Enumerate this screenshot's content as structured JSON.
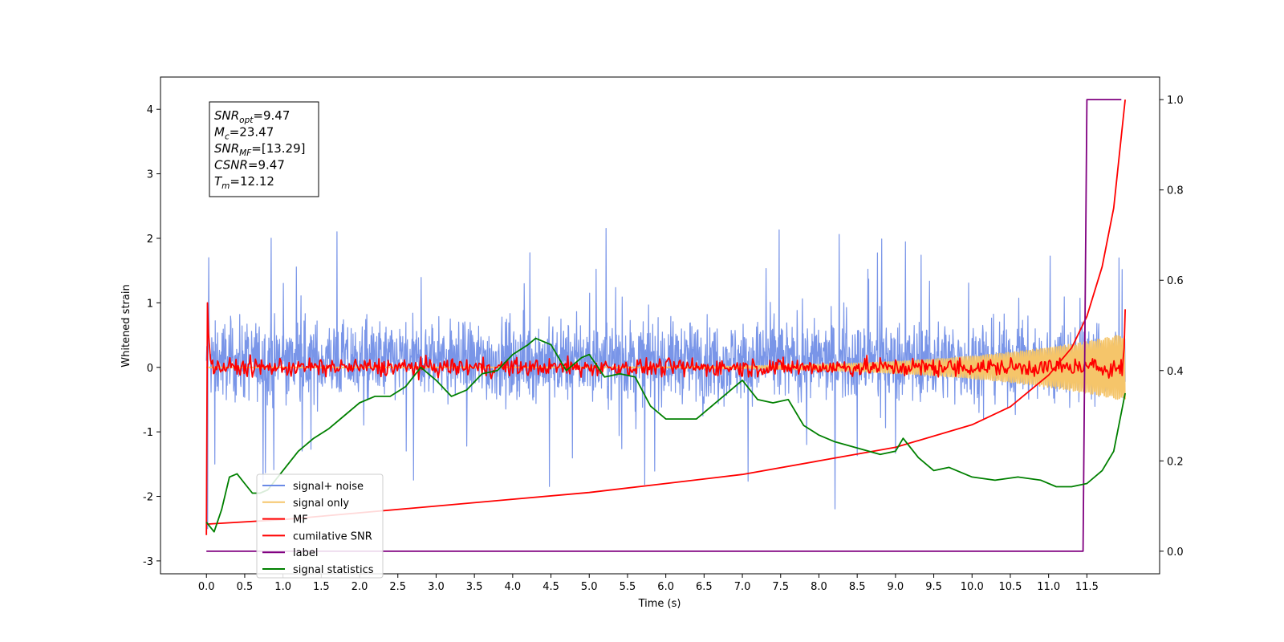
{
  "chart_data": {
    "type": "line",
    "title": "",
    "xlabel": "Time (s)",
    "ylabel": "Whitened strain",
    "xlim": [
      -0.6,
      12.45
    ],
    "ylim": [
      -3.2,
      4.5
    ],
    "y2lim": [
      -0.05,
      1.05
    ],
    "x_ticks": [
      0.0,
      0.5,
      1.0,
      1.5,
      2.0,
      2.5,
      3.0,
      3.5,
      4.0,
      4.5,
      5.0,
      5.5,
      6.0,
      6.5,
      7.0,
      7.5,
      8.0,
      8.5,
      9.0,
      9.5,
      10.0,
      10.5,
      11.0,
      11.5
    ],
    "x_tick_labels": [
      "0.0",
      "0.5",
      "1.0",
      "1.5",
      "2.0",
      "2.5",
      "3.0",
      "3.5",
      "4.0",
      "4.5",
      "5.0",
      "5.5",
      "6.0",
      "6.5",
      "7.0",
      "7.5",
      "8.0",
      "8.5",
      "9.0",
      "9.5",
      "10.0",
      "10.5",
      "11.0",
      "11.5"
    ],
    "y_ticks": [
      -3,
      -2,
      -1,
      0,
      1,
      2,
      3,
      4
    ],
    "y2_ticks": [
      0.0,
      0.2,
      0.4,
      0.6,
      0.8,
      1.0
    ],
    "y2_tick_labels": [
      "0.0",
      "0.2",
      "0.4",
      "0.6",
      "0.8",
      "1.0"
    ],
    "info_box": [
      {
        "main": "SNR",
        "sub": "opt",
        "rest": "=9.47"
      },
      {
        "main": "M",
        "sub": "c",
        "rest": "=23.47"
      },
      {
        "main": "SNR",
        "sub": "MF",
        "rest": "=[13.29]"
      },
      {
        "main": "CSNR",
        "sub": "",
        "rest": "=9.47"
      },
      {
        "main": "T",
        "sub": "m",
        "rest": "=12.12"
      }
    ],
    "legend_position": "lower-left",
    "legend": [
      {
        "label": "signal+ noise",
        "color": "#6a8ae6"
      },
      {
        "label": "signal only",
        "color": "#f5c56a"
      },
      {
        "label": "MF",
        "color": "#ff0000"
      },
      {
        "label": "cumilative SNR",
        "color": "#ff0000"
      },
      {
        "label": "label",
        "color": "#800080"
      },
      {
        "label": "signal statistics",
        "color": "#008000"
      }
    ],
    "series": [
      {
        "name": "signal+ noise",
        "axis": "left",
        "color": "#6a8ae6",
        "kind": "noise",
        "x_range": [
          0.0,
          12.0
        ],
        "center": 0.1,
        "spread": 0.55,
        "peak_range": [
          -2.55,
          2.25
        ]
      },
      {
        "name": "signal only",
        "axis": "left",
        "color": "#f5c56a",
        "kind": "chirp",
        "x_range": [
          0.0,
          12.0
        ],
        "max_amplitude": 0.52
      },
      {
        "name": "MF",
        "axis": "left",
        "color": "#ff0000",
        "kind": "mf",
        "x_range": [
          0.0,
          12.0
        ],
        "start_value": 1.0,
        "end_value": 0.9,
        "baseline": 0.0,
        "jitter": 0.07
      },
      {
        "name": "cumilative SNR",
        "axis": "right",
        "color": "#ff0000",
        "x": [
          0.0,
          1.0,
          2.0,
          3.0,
          4.0,
          5.0,
          6.0,
          7.0,
          8.0,
          9.0,
          10.0,
          10.5,
          11.0,
          11.3,
          11.5,
          11.7,
          11.85,
          12.0
        ],
        "y": [
          0.06,
          0.07,
          0.085,
          0.1,
          0.115,
          0.13,
          0.15,
          0.17,
          0.2,
          0.23,
          0.28,
          0.32,
          0.39,
          0.45,
          0.52,
          0.63,
          0.76,
          1.0
        ]
      },
      {
        "name": "label",
        "axis": "right",
        "color": "#800080",
        "x": [
          0.0,
          11.45,
          11.5,
          11.95
        ],
        "y": [
          0.0,
          0.0,
          1.0,
          1.0
        ]
      },
      {
        "name": "signal statistics",
        "axis": "left",
        "color": "#008000",
        "x": [
          0.0,
          0.1,
          0.2,
          0.3,
          0.4,
          0.5,
          0.6,
          0.7,
          0.8,
          0.9,
          1.0,
          1.2,
          1.4,
          1.6,
          1.8,
          2.0,
          2.2,
          2.4,
          2.6,
          2.8,
          3.0,
          3.2,
          3.4,
          3.6,
          3.8,
          4.0,
          4.2,
          4.3,
          4.5,
          4.7,
          4.9,
          5.0,
          5.2,
          5.4,
          5.6,
          5.8,
          6.0,
          6.2,
          6.4,
          6.6,
          6.8,
          7.0,
          7.2,
          7.4,
          7.6,
          7.8,
          8.0,
          8.2,
          8.5,
          8.8,
          9.0,
          9.1,
          9.3,
          9.5,
          9.7,
          10.0,
          10.3,
          10.6,
          10.9,
          11.1,
          11.3,
          11.5,
          11.7,
          11.85,
          12.0
        ],
        "y": [
          -2.4,
          -2.55,
          -2.2,
          -1.7,
          -1.65,
          -1.8,
          -1.95,
          -1.95,
          -1.9,
          -1.75,
          -1.6,
          -1.3,
          -1.1,
          -0.95,
          -0.75,
          -0.55,
          -0.45,
          -0.45,
          -0.3,
          0.0,
          -0.2,
          -0.45,
          -0.35,
          -0.1,
          -0.05,
          0.2,
          0.35,
          0.45,
          0.35,
          -0.05,
          0.15,
          0.2,
          -0.15,
          -0.1,
          -0.15,
          -0.6,
          -0.8,
          -0.8,
          -0.8,
          -0.6,
          -0.4,
          -0.2,
          -0.5,
          -0.55,
          -0.5,
          -0.9,
          -1.05,
          -1.15,
          -1.25,
          -1.35,
          -1.3,
          -1.1,
          -1.4,
          -1.6,
          -1.55,
          -1.7,
          -1.75,
          -1.7,
          -1.75,
          -1.85,
          -1.85,
          -1.8,
          -1.6,
          -1.3,
          -0.4
        ]
      }
    ]
  }
}
